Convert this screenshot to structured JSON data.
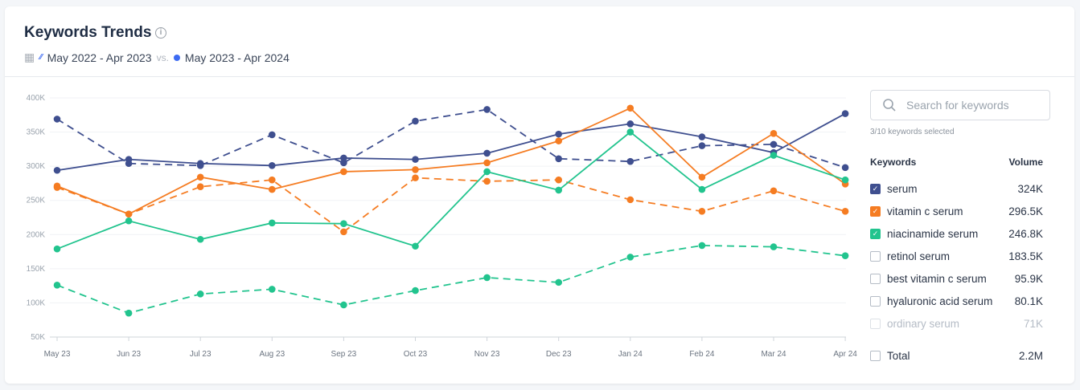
{
  "header": {
    "title": "Keywords Trends",
    "period_prev": "May 2022 - Apr 2023",
    "vs": "vs.",
    "period_curr": "May 2023 - Apr 2024"
  },
  "search": {
    "placeholder": "Search for keywords"
  },
  "selected_text": "3/10 keywords selected",
  "list": {
    "col_keywords": "Keywords",
    "col_volume": "Volume",
    "items": [
      {
        "label": "serum",
        "volume": "324K",
        "checked": true,
        "color": "#3f4f8f"
      },
      {
        "label": "vitamin c serum",
        "volume": "296.5K",
        "checked": true,
        "color": "#f57c22"
      },
      {
        "label": "niacinamide serum",
        "volume": "246.8K",
        "checked": true,
        "color": "#22c48e"
      },
      {
        "label": "retinol serum",
        "volume": "183.5K",
        "checked": false
      },
      {
        "label": "best vitamin c serum",
        "volume": "95.9K",
        "checked": false
      },
      {
        "label": "hyaluronic acid serum",
        "volume": "80.1K",
        "checked": false
      },
      {
        "label": "ordinary serum",
        "volume": "71K",
        "checked": false,
        "disabled": true
      }
    ],
    "total": {
      "label": "Total",
      "volume": "2.2M",
      "checked": false
    }
  },
  "chart_data": {
    "type": "line",
    "categories": [
      "May 23",
      "Jun 23",
      "Jul 23",
      "Aug 23",
      "Sep 23",
      "Oct 23",
      "Nov 23",
      "Dec 23",
      "Jan 24",
      "Feb 24",
      "Mar 24",
      "Apr 24"
    ],
    "yticks": [
      "50K",
      "100K",
      "150K",
      "200K",
      "250K",
      "300K",
      "350K",
      "400K"
    ],
    "ylim": [
      50000,
      400000
    ],
    "grid": true,
    "series": [
      {
        "name": "serum",
        "period": "May 2023 - Apr 2024",
        "style": "solid",
        "color": "#3f4f8f",
        "values": [
          294,
          310,
          304,
          301,
          312,
          310,
          319,
          347,
          362,
          343,
          320,
          377
        ]
      },
      {
        "name": "serum",
        "period": "May 2022 - Apr 2023",
        "style": "dashed",
        "color": "#3f4f8f",
        "values": [
          369,
          304,
          301,
          346,
          305,
          366,
          383,
          311,
          307,
          330,
          332,
          298
        ]
      },
      {
        "name": "vitamin c serum",
        "period": "May 2023 - Apr 2024",
        "style": "solid",
        "color": "#f57c22",
        "values": [
          271,
          230,
          284,
          266,
          292,
          295,
          305,
          337,
          385,
          284,
          348,
          274
        ]
      },
      {
        "name": "vitamin c serum",
        "period": "May 2022 - Apr 2023",
        "style": "dashed",
        "color": "#f57c22",
        "values": [
          269,
          230,
          270,
          280,
          204,
          283,
          278,
          280,
          251,
          234,
          264,
          234
        ]
      },
      {
        "name": "niacinamide serum",
        "period": "May 2023 - Apr 2024",
        "style": "solid",
        "color": "#22c48e",
        "values": [
          179,
          220,
          193,
          217,
          216,
          183,
          292,
          265,
          350,
          266,
          316,
          280
        ]
      },
      {
        "name": "niacinamide serum",
        "period": "May 2022 - Apr 2023",
        "style": "dashed",
        "color": "#22c48e",
        "values": [
          126,
          85,
          113,
          120,
          97,
          118,
          137,
          130,
          167,
          184,
          182,
          169
        ]
      }
    ],
    "value_unit": "K"
  }
}
